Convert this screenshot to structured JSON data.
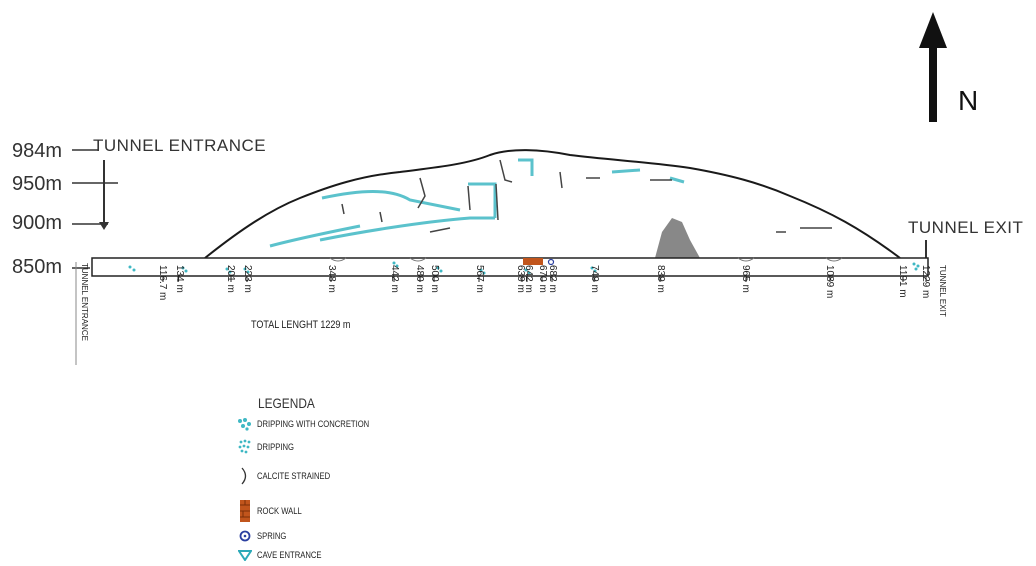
{
  "elevations": [
    "984m",
    "950m",
    "900m",
    "850m"
  ],
  "labels": {
    "tunnel_entrance": "TUNNEL ENTRANCE",
    "tunnel_exit": "TUNNEL EXIT",
    "tunnel_entrance_small": "TUNNEL ENTRANCE",
    "tunnel_exit_small": "TUNNEL EXIT",
    "north": "N",
    "total_length": "TOTAL LENGHT 1229 m"
  },
  "distances": [
    "116.7 m",
    "134 m",
    "201 m",
    "223 m",
    "348 m",
    "442 m",
    "480 m",
    "500 m",
    "567 m",
    "639 m",
    "642 m",
    "670 m",
    "682 m",
    "749 m",
    "839 m",
    "965 m",
    "1089 m",
    "1191 m",
    "1229 m"
  ],
  "legend": {
    "title": "LEGENDA",
    "items": [
      {
        "label": "DRIPPING WITH CONCRETION",
        "icon": "dripping-concretion-icon"
      },
      {
        "label": "DRIPPING",
        "icon": "dripping-icon"
      },
      {
        "label": "CALCITE STRAINED",
        "icon": "calcite-icon"
      },
      {
        "label": "ROCK WALL",
        "icon": "rock-wall-icon"
      },
      {
        "label": "SPRING",
        "icon": "spring-icon"
      },
      {
        "label": "CAVE ENTRANCE",
        "icon": "cave-entrance-icon"
      }
    ]
  },
  "colors": {
    "cave": "#3fb8c4",
    "rock_wall": "#c1551c",
    "spring": "#2a3fa0",
    "outline": "#222222"
  }
}
